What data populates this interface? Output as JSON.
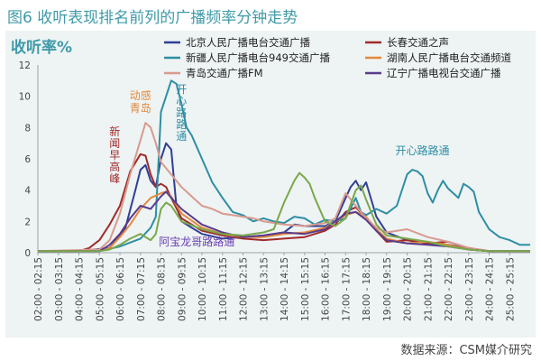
{
  "header": {
    "title": "图6 收听表现排名前列的广播频率分钟走势"
  },
  "footer": {
    "source": "数据来源：CSM媒介研究"
  },
  "chart_data": {
    "type": "line",
    "ylabel": "收听率%",
    "ylim": [
      0,
      12
    ],
    "yticks": [
      0,
      2,
      4,
      6,
      8,
      10,
      12
    ],
    "xlim": [
      "02:00",
      "26:00"
    ],
    "xtick_labels": [
      "02:00 - 02:15",
      "03:00 - 03:15",
      "04:00 - 04:15",
      "05:00 - 05:15",
      "06:00 - 06:15",
      "07:00 - 07:15",
      "08:00 - 08:15",
      "09:00 - 09:15",
      "10:00 - 10:15",
      "11:00 - 11:15",
      "12:00 - 12:15",
      "13:00 - 13:15",
      "14:00 - 14:15",
      "15:00 - 15:15",
      "16:00 - 16:15",
      "17:00 - 17:15",
      "18:00 - 18:15",
      "19:00 - 19:15",
      "20:00 - 20:15",
      "21:00 - 21:15",
      "22:00 - 22:15",
      "23:00 - 23:15",
      "24:00 - 24:15",
      "25:00 - 25:15"
    ],
    "legend_position": "top-right",
    "grid": false,
    "series": [
      {
        "name": "北京人民广播电台交通广播",
        "color": "#2f3f93",
        "points": [
          [
            "02:00",
            0.1
          ],
          [
            "04:00",
            0.1
          ],
          [
            "05:30",
            0.3
          ],
          [
            "06:15",
            1.5
          ],
          [
            "06:45",
            4.0
          ],
          [
            "07:00",
            5.3
          ],
          [
            "07:15",
            5.6
          ],
          [
            "07:30",
            4.6
          ],
          [
            "07:45",
            4.2
          ],
          [
            "08:00",
            6.0
          ],
          [
            "08:15",
            7.0
          ],
          [
            "08:30",
            6.6
          ],
          [
            "08:45",
            3.0
          ],
          [
            "09:00",
            2.0
          ],
          [
            "09:30",
            1.6
          ],
          [
            "10:00",
            1.2
          ],
          [
            "11:00",
            0.9
          ],
          [
            "12:00",
            1.0
          ],
          [
            "13:00",
            1.1
          ],
          [
            "14:00",
            1.3
          ],
          [
            "14:30",
            1.8
          ],
          [
            "15:00",
            1.7
          ],
          [
            "16:00",
            1.7
          ],
          [
            "16:30",
            2.0
          ],
          [
            "17:00",
            3.5
          ],
          [
            "17:15",
            4.2
          ],
          [
            "17:30",
            4.6
          ],
          [
            "17:45",
            4.0
          ],
          [
            "18:00",
            4.5
          ],
          [
            "18:30",
            2.3
          ],
          [
            "19:00",
            1.3
          ],
          [
            "20:00",
            0.8
          ],
          [
            "21:00",
            0.6
          ],
          [
            "22:00",
            0.5
          ],
          [
            "22:30",
            0.4
          ],
          [
            "23:00",
            0.2
          ],
          [
            "24:00",
            0.1
          ],
          [
            "26:00",
            0.1
          ]
        ]
      },
      {
        "name": "长春交通之声",
        "color": "#a02b2b",
        "points": [
          [
            "02:00",
            0.1
          ],
          [
            "04:00",
            0.1
          ],
          [
            "04:30",
            0.3
          ],
          [
            "05:00",
            0.8
          ],
          [
            "05:30",
            1.8
          ],
          [
            "06:00",
            3.0
          ],
          [
            "06:30",
            5.2
          ],
          [
            "07:00",
            6.3
          ],
          [
            "07:15",
            6.2
          ],
          [
            "07:30",
            5.0
          ],
          [
            "07:45",
            4.2
          ],
          [
            "08:00",
            4.4
          ],
          [
            "08:15",
            4.2
          ],
          [
            "08:30",
            3.5
          ],
          [
            "09:00",
            2.2
          ],
          [
            "10:00",
            1.4
          ],
          [
            "11:00",
            1.1
          ],
          [
            "12:00",
            0.9
          ],
          [
            "13:00",
            0.8
          ],
          [
            "14:00",
            0.9
          ],
          [
            "15:00",
            1.0
          ],
          [
            "16:00",
            1.4
          ],
          [
            "16:30",
            1.8
          ],
          [
            "17:00",
            2.6
          ],
          [
            "17:30",
            2.9
          ],
          [
            "18:00",
            2.2
          ],
          [
            "18:30",
            1.4
          ],
          [
            "19:00",
            0.7
          ],
          [
            "20:00",
            0.8
          ],
          [
            "21:00",
            0.6
          ],
          [
            "22:00",
            0.7
          ],
          [
            "22:30",
            0.5
          ],
          [
            "23:00",
            0.3
          ],
          [
            "24:00",
            0.1
          ],
          [
            "26:00",
            0.1
          ]
        ]
      },
      {
        "name": "新疆人民广播电台949交通广播",
        "color": "#2e8ea3",
        "points": [
          [
            "02:00",
            0.1
          ],
          [
            "05:00",
            0.1
          ],
          [
            "06:00",
            0.4
          ],
          [
            "07:00",
            0.9
          ],
          [
            "07:30",
            1.6
          ],
          [
            "07:45",
            2.3
          ],
          [
            "08:00",
            9.0
          ],
          [
            "08:15",
            10.0
          ],
          [
            "08:30",
            11.0
          ],
          [
            "08:45",
            10.8
          ],
          [
            "09:00",
            9.5
          ],
          [
            "09:15",
            8.0
          ],
          [
            "09:30",
            7.5
          ],
          [
            "10:00",
            6.0
          ],
          [
            "10:30",
            4.5
          ],
          [
            "11:00",
            3.5
          ],
          [
            "11:30",
            2.6
          ],
          [
            "12:00",
            2.4
          ],
          [
            "12:30",
            2.0
          ],
          [
            "13:00",
            2.2
          ],
          [
            "13:30",
            2.0
          ],
          [
            "14:00",
            1.9
          ],
          [
            "14:30",
            2.3
          ],
          [
            "15:00",
            2.2
          ],
          [
            "15:30",
            1.8
          ],
          [
            "16:00",
            2.1
          ],
          [
            "16:30",
            2.0
          ],
          [
            "17:00",
            2.2
          ],
          [
            "17:30",
            3.5
          ],
          [
            "17:45",
            2.6
          ],
          [
            "18:00",
            2.4
          ],
          [
            "18:30",
            2.8
          ],
          [
            "19:00",
            2.5
          ],
          [
            "19:30",
            3.0
          ],
          [
            "20:00",
            5.0
          ],
          [
            "20:15",
            5.3
          ],
          [
            "20:30",
            5.2
          ],
          [
            "20:45",
            4.9
          ],
          [
            "21:00",
            3.8
          ],
          [
            "21:15",
            3.2
          ],
          [
            "21:30",
            4.0
          ],
          [
            "21:45",
            4.6
          ],
          [
            "22:00",
            4.1
          ],
          [
            "22:30",
            3.5
          ],
          [
            "22:45",
            4.4
          ],
          [
            "23:00",
            4.2
          ],
          [
            "23:15",
            3.9
          ],
          [
            "23:30",
            2.6
          ],
          [
            "24:00",
            1.5
          ],
          [
            "24:30",
            1.0
          ],
          [
            "25:00",
            0.8
          ],
          [
            "25:30",
            0.5
          ],
          [
            "26:00",
            0.5
          ]
        ]
      },
      {
        "name": "湖南人民广播电台交通频道",
        "color": "#e48a3c",
        "points": [
          [
            "02:00",
            0.1
          ],
          [
            "05:00",
            0.1
          ],
          [
            "05:30",
            0.3
          ],
          [
            "06:00",
            1.0
          ],
          [
            "06:30",
            1.8
          ],
          [
            "07:00",
            2.8
          ],
          [
            "07:30",
            3.5
          ],
          [
            "08:00",
            3.8
          ],
          [
            "08:15",
            3.9
          ],
          [
            "08:30",
            3.6
          ],
          [
            "09:00",
            2.5
          ],
          [
            "10:00",
            1.6
          ],
          [
            "11:00",
            1.2
          ],
          [
            "12:00",
            1.0
          ],
          [
            "13:00",
            1.0
          ],
          [
            "14:00",
            1.2
          ],
          [
            "15:00",
            1.3
          ],
          [
            "16:00",
            1.6
          ],
          [
            "17:00",
            2.4
          ],
          [
            "17:30",
            2.6
          ],
          [
            "18:00",
            2.3
          ],
          [
            "18:30",
            1.5
          ],
          [
            "19:00",
            0.9
          ],
          [
            "20:00",
            0.6
          ],
          [
            "21:00",
            0.7
          ],
          [
            "22:00",
            0.5
          ],
          [
            "23:00",
            0.2
          ],
          [
            "24:00",
            0.1
          ],
          [
            "26:00",
            0.1
          ]
        ]
      },
      {
        "name": "青岛交通广播FM",
        "color": "#d99a8e",
        "points": [
          [
            "02:00",
            0.1
          ],
          [
            "05:00",
            0.2
          ],
          [
            "05:30",
            0.8
          ],
          [
            "06:00",
            2.5
          ],
          [
            "06:30",
            5.0
          ],
          [
            "07:00",
            7.2
          ],
          [
            "07:15",
            8.3
          ],
          [
            "07:30",
            8.0
          ],
          [
            "07:45",
            7.0
          ],
          [
            "08:00",
            5.8
          ],
          [
            "08:30",
            5.0
          ],
          [
            "09:00",
            4.2
          ],
          [
            "09:30",
            3.6
          ],
          [
            "10:00",
            3.0
          ],
          [
            "10:30",
            2.8
          ],
          [
            "11:00",
            2.5
          ],
          [
            "12:00",
            2.3
          ],
          [
            "12:30",
            2.2
          ],
          [
            "13:00",
            2.0
          ],
          [
            "14:00",
            1.8
          ],
          [
            "15:00",
            1.7
          ],
          [
            "16:00",
            1.9
          ],
          [
            "16:30",
            2.2
          ],
          [
            "17:00",
            3.8
          ],
          [
            "17:30",
            3.0
          ],
          [
            "18:00",
            2.2
          ],
          [
            "18:30",
            1.6
          ],
          [
            "19:00",
            1.3
          ],
          [
            "20:00",
            1.5
          ],
          [
            "21:00",
            1.0
          ],
          [
            "22:00",
            0.7
          ],
          [
            "23:00",
            0.3
          ],
          [
            "24:00",
            0.1
          ],
          [
            "26:00",
            0.1
          ]
        ]
      },
      {
        "name": "辽宁广播电视台交通广播",
        "color": "#5a3b8c",
        "points": [
          [
            "02:00",
            0.1
          ],
          [
            "05:00",
            0.1
          ],
          [
            "05:30",
            0.5
          ],
          [
            "06:00",
            1.2
          ],
          [
            "06:30",
            2.2
          ],
          [
            "07:00",
            3.0
          ],
          [
            "07:30",
            2.8
          ],
          [
            "08:00",
            3.6
          ],
          [
            "08:15",
            3.9
          ],
          [
            "08:30",
            3.5
          ],
          [
            "09:00",
            2.8
          ],
          [
            "10:00",
            1.8
          ],
          [
            "11:00",
            1.3
          ],
          [
            "12:00",
            1.0
          ],
          [
            "13:00",
            1.1
          ],
          [
            "14:00",
            1.3
          ],
          [
            "15:00",
            1.2
          ],
          [
            "16:00",
            1.5
          ],
          [
            "17:00",
            2.5
          ],
          [
            "17:30",
            2.6
          ],
          [
            "18:00",
            2.1
          ],
          [
            "18:30",
            1.4
          ],
          [
            "19:00",
            0.8
          ],
          [
            "20:00",
            0.6
          ],
          [
            "21:00",
            0.5
          ],
          [
            "22:00",
            0.4
          ],
          [
            "23:00",
            0.2
          ],
          [
            "24:00",
            0.1
          ],
          [
            "26:00",
            0.1
          ]
        ]
      },
      {
        "name": "",
        "color": "#7aa84a",
        "legend": false,
        "points": [
          [
            "02:00",
            0.1
          ],
          [
            "05:00",
            0.1
          ],
          [
            "05:30",
            0.2
          ],
          [
            "06:00",
            0.5
          ],
          [
            "06:30",
            0.9
          ],
          [
            "07:00",
            1.2
          ],
          [
            "07:15",
            1.0
          ],
          [
            "07:30",
            0.8
          ],
          [
            "07:45",
            1.2
          ],
          [
            "08:00",
            2.8
          ],
          [
            "08:15",
            3.2
          ],
          [
            "08:30",
            3.0
          ],
          [
            "09:00",
            2.0
          ],
          [
            "10:00",
            1.5
          ],
          [
            "11:00",
            1.2
          ],
          [
            "12:00",
            1.1
          ],
          [
            "13:00",
            1.3
          ],
          [
            "13:30",
            1.5
          ],
          [
            "14:00",
            3.2
          ],
          [
            "14:30",
            4.6
          ],
          [
            "14:45",
            5.1
          ],
          [
            "15:00",
            4.8
          ],
          [
            "15:15",
            4.4
          ],
          [
            "15:30",
            3.5
          ],
          [
            "16:00",
            2.0
          ],
          [
            "16:30",
            1.7
          ],
          [
            "17:00",
            2.2
          ],
          [
            "17:30",
            4.0
          ],
          [
            "17:45",
            4.3
          ],
          [
            "18:00",
            3.4
          ],
          [
            "18:30",
            1.8
          ],
          [
            "19:00",
            1.1
          ],
          [
            "20:00",
            0.9
          ],
          [
            "21:00",
            0.7
          ],
          [
            "22:00",
            0.4
          ],
          [
            "23:00",
            0.2
          ],
          [
            "24:00",
            0.1
          ],
          [
            "26:00",
            0.1
          ]
        ]
      }
    ],
    "annotations": [
      {
        "text": "动感青岛",
        "color": "#e48a3c",
        "at": [
          "07:00",
          9.8
        ],
        "lines": [
          "动感",
          "青岛"
        ]
      },
      {
        "text": "新闻早高峰",
        "color": "#a02b2b",
        "at": [
          "05:45",
          7.5
        ],
        "vertical": true
      },
      {
        "text": "开心路路通",
        "color": "#2e8ea3",
        "at": [
          "09:00",
          10.2
        ],
        "vertical": true
      },
      {
        "text": "开心路路通",
        "color": "#2e8ea3",
        "at": [
          "20:45",
          6.3
        ]
      },
      {
        "text": "阿宝龙哥路路通",
        "color": "#6a3fb0",
        "at": [
          "09:45",
          0.45
        ]
      }
    ]
  }
}
